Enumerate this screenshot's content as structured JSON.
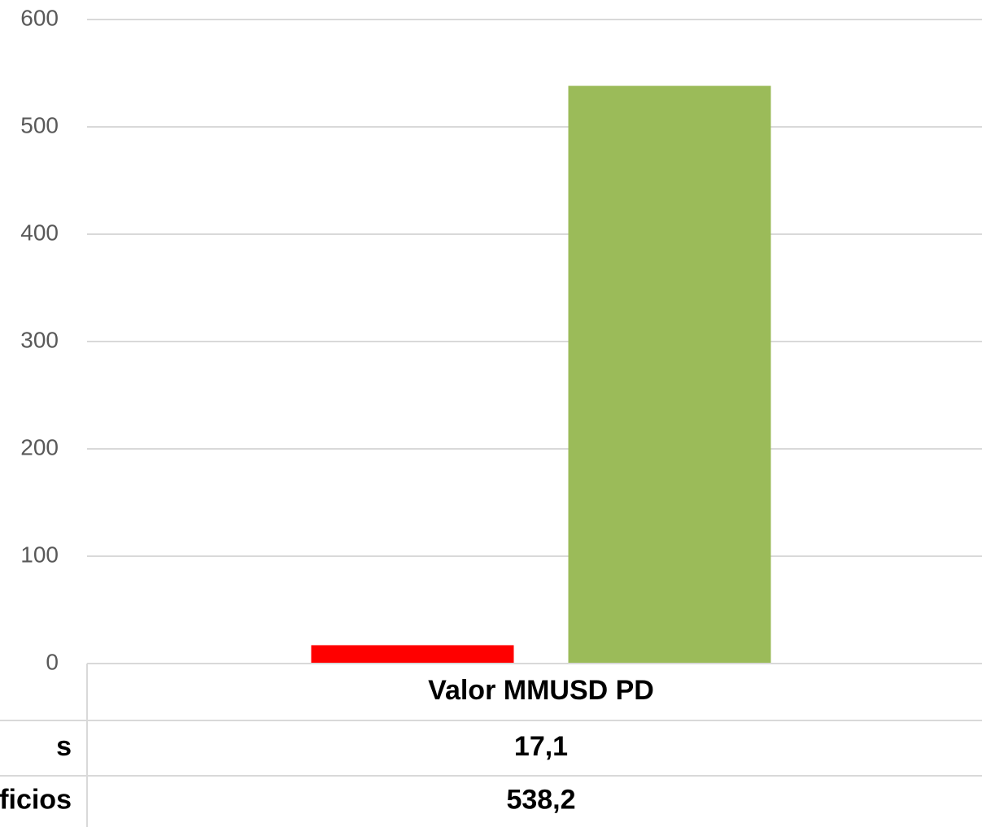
{
  "chart_data": {
    "type": "bar",
    "categories": [
      "Valor MMUSD PD"
    ],
    "series": [
      {
        "name": "s",
        "color": "#ff0000",
        "values": [
          17.1
        ],
        "value_labels": [
          "17,1"
        ]
      },
      {
        "name": "ficios",
        "color": "#9bbb59",
        "values": [
          538.2
        ],
        "value_labels": [
          "538,2"
        ]
      }
    ],
    "ylim": [
      0,
      600
    ],
    "yticks": [
      0,
      100,
      200,
      300,
      400,
      500,
      600
    ],
    "grid": true
  }
}
